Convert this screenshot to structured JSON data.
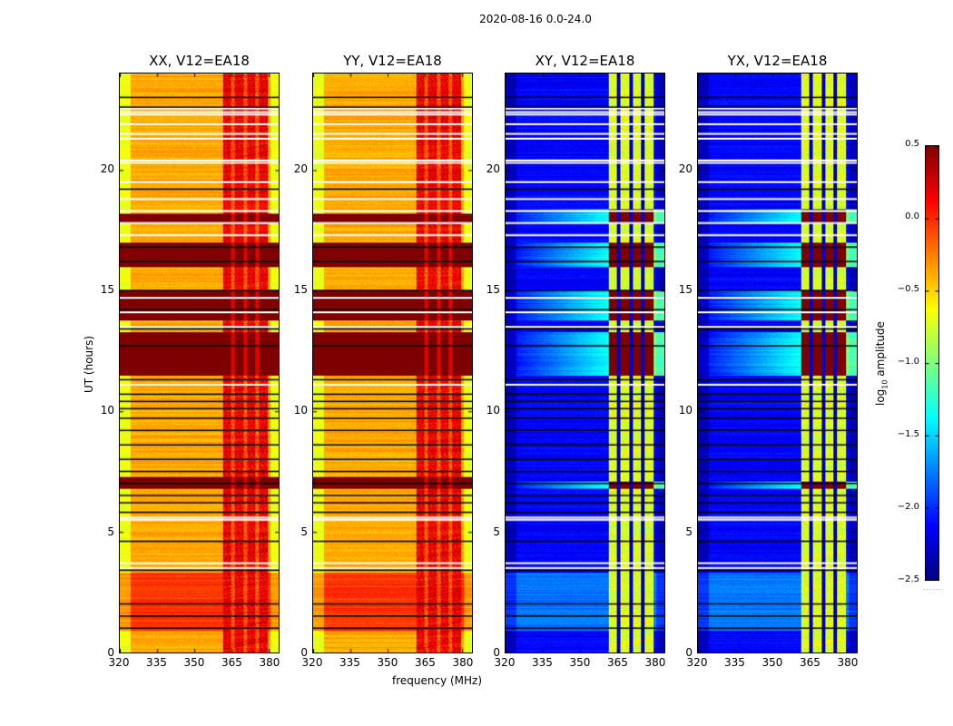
{
  "figure": {
    "suptitle": "2020-08-16 0.0-24.0",
    "xlabel": "frequency (MHz)",
    "ylabel": "UT (hours)",
    "colorbar_label_prefix": "log",
    "colorbar_label_sub": "10",
    "colorbar_label_suffix": " amplitude",
    "colorbar_ticks": [
      "0.5",
      "0.0",
      "−0.5",
      "−1.0",
      "−1.5",
      "−2.0",
      "−2.5"
    ],
    "colorbar_footer": "......"
  },
  "chart_data": {
    "type": "heatmap",
    "title": "2020-08-16 0.0-24.0",
    "xlabel": "frequency (MHz)",
    "ylabel": "UT (hours)",
    "colormap": "jet",
    "colorbar": {
      "label": "log10 amplitude",
      "range": [
        -2.5,
        0.5
      ],
      "ticks": [
        0.5,
        0.0,
        -0.5,
        -1.0,
        -1.5,
        -2.0,
        -2.5
      ]
    },
    "xlim": [
      320,
      384
    ],
    "ylim": [
      0,
      24
    ],
    "xticks": [
      320,
      335,
      350,
      365,
      380
    ],
    "xtick_labels": [
      "320",
      "335",
      "350",
      "365",
      "380"
    ],
    "yticks": [
      0,
      5,
      10,
      15,
      20
    ],
    "ytick_labels": [
      "0",
      "5",
      "10",
      "15",
      "20"
    ],
    "rfi_band_mhz": [
      361.5,
      379.5
    ],
    "band_gaps_mhz": [
      365.5,
      370.5,
      375
    ],
    "flagged_white_hours": [
      3.5,
      3.7,
      5.5,
      5.6,
      11.1,
      13.5,
      14.1,
      14.7,
      17.3,
      17.8,
      18.3,
      18.8,
      19.5,
      20.3,
      20.4,
      21.3,
      21.5,
      21.9,
      22.3,
      22.4,
      22.55
    ],
    "flagged_black_hours": [
      1.0,
      1.5,
      2.0,
      3.4,
      4.6,
      5.8,
      6.2,
      6.5,
      7.0,
      7.5,
      8.0,
      8.6,
      9.2,
      9.7,
      10.1,
      10.4,
      10.7,
      11.3,
      12.7,
      13.4,
      14.2,
      15.0,
      16.2,
      16.8,
      19.2,
      22.6,
      23.0
    ],
    "panels": [
      {
        "title": "XX, V12=EA18",
        "polarization": "XX",
        "baseline": "V12=EA18",
        "levels": {
          "background": -0.45,
          "rfi": 0.1,
          "strong_rfi": 0.5,
          "edge": -0.75
        },
        "strong_hours": [
          [
            6.8,
            7.3
          ],
          [
            11.5,
            13.3
          ],
          [
            13.8,
            15.0
          ],
          [
            16.0,
            17.0
          ],
          [
            17.8,
            18.2
          ]
        ],
        "elevated_hours": [
          [
            0.9,
            3.3
          ]
        ]
      },
      {
        "title": "YY, V12=EA18",
        "polarization": "YY",
        "baseline": "V12=EA18",
        "levels": {
          "background": -0.45,
          "rfi": 0.1,
          "strong_rfi": 0.5,
          "edge": -0.75
        },
        "strong_hours": [
          [
            6.8,
            7.3
          ],
          [
            11.5,
            13.3
          ],
          [
            13.8,
            15.0
          ],
          [
            16.0,
            17.0
          ],
          [
            17.8,
            18.2
          ]
        ],
        "elevated_hours": [
          [
            0.9,
            3.3
          ]
        ]
      },
      {
        "title": "XY, V12=EA18",
        "polarization": "XY",
        "baseline": "V12=EA18",
        "levels": {
          "background": -2.2,
          "rfi": -0.8,
          "strong_rfi": 0.5,
          "edge": -2.4
        },
        "strong_hours": [
          [
            6.8,
            7.1
          ],
          [
            11.5,
            13.3
          ],
          [
            13.8,
            15.0
          ],
          [
            16.0,
            17.0
          ],
          [
            17.8,
            18.4
          ]
        ],
        "elevated_hours": [
          [
            0.9,
            3.3
          ]
        ]
      },
      {
        "title": "YX, V12=EA18",
        "polarization": "YX",
        "baseline": "V12=EA18",
        "levels": {
          "background": -2.2,
          "rfi": -0.8,
          "strong_rfi": 0.5,
          "edge": -2.4
        },
        "strong_hours": [
          [
            6.8,
            7.1
          ],
          [
            11.5,
            13.3
          ],
          [
            13.8,
            15.0
          ],
          [
            16.0,
            17.0
          ],
          [
            17.8,
            18.4
          ]
        ],
        "elevated_hours": [
          [
            0.9,
            3.3
          ]
        ]
      }
    ]
  }
}
